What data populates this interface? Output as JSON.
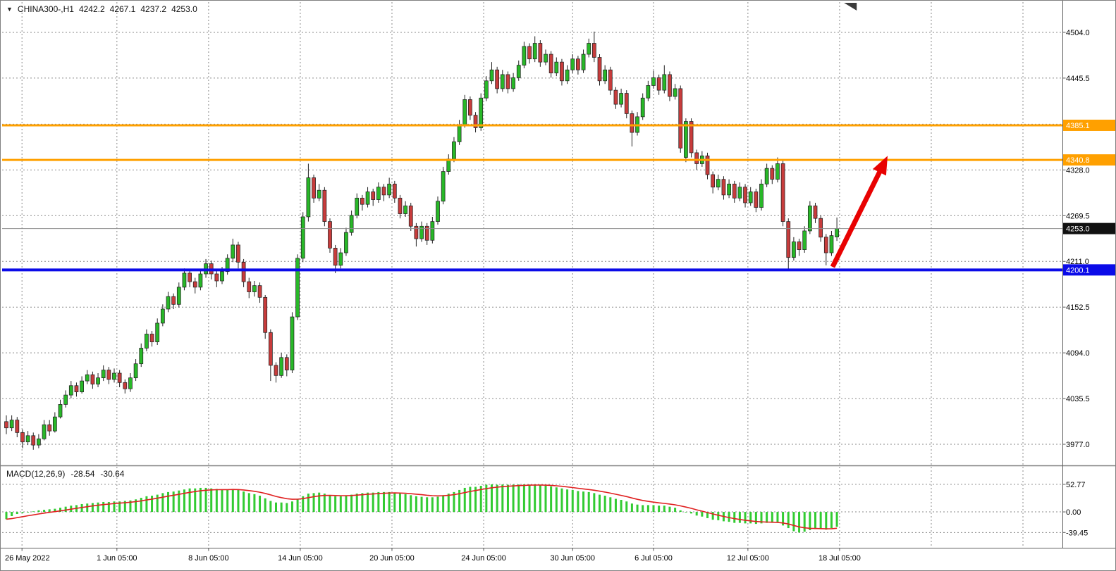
{
  "window": {
    "background": "#ffffff",
    "border_color": "#808080"
  },
  "header": {
    "collapse_icon": "▼",
    "symbol_timeframe": "CHINA300-,H1",
    "open": "4242.2",
    "high": "4267.1",
    "low": "4237.2",
    "close": "4253.0"
  },
  "macd_header": {
    "name": "MACD(12,26,9)",
    "macd_value": "-28.54",
    "signal_value": "-30.64"
  },
  "icons": {
    "shift_marker": "chart-shift-marker"
  },
  "chart_data": [
    {
      "type": "candlestick",
      "title": "CHINA300-,H1",
      "x_axis": {
        "labels": [
          "26 May 2022",
          "1 Jun 05:00",
          "8 Jun 05:00",
          "14 Jun 05:00",
          "20 Jun 05:00",
          "24 Jun 05:00",
          "30 Jun 05:00",
          "6 Jul 05:00",
          "12 Jul 05:00",
          "18 Jul 05:00"
        ],
        "gridline_candle_indices": [
          2.9,
          20.5,
          37.5,
          54.5,
          71.5,
          88.5,
          105,
          120,
          137.5,
          154.5
        ],
        "extra_gridline_indices": [
          171.5,
          188.5
        ]
      },
      "y_axis": {
        "range": [
          3951.8,
          4537.3
        ],
        "ticks": [
          {
            "price": 4504.0,
            "label": "4504.0"
          },
          {
            "price": 4445.5,
            "label": "4445.5"
          },
          {
            "price": 4328.0,
            "label": "4328.0"
          },
          {
            "price": 4269.5,
            "label": "4269.5"
          },
          {
            "price": 4211.0,
            "label": "4211.0"
          },
          {
            "price": 4152.5,
            "label": "4152.5"
          },
          {
            "price": 4094.0,
            "label": "4094.0"
          },
          {
            "price": 4035.5,
            "label": "4035.5"
          },
          {
            "price": 3977.0,
            "label": "3977.0"
          }
        ],
        "grid_only": [
          4386.5
        ]
      },
      "colors": {
        "up": "#28B828",
        "down": "#C83C3C",
        "outline": "#222222",
        "grid": "#8a8a8a"
      },
      "candles": [
        [
          4006,
          4014,
          3990,
          3998
        ],
        [
          3998,
          4014,
          3994,
          4008
        ],
        [
          4008,
          4012,
          3986,
          3992
        ],
        [
          3992,
          3996,
          3972,
          3980
        ],
        [
          3980,
          3994,
          3976,
          3988
        ],
        [
          3988,
          3992,
          3970,
          3976
        ],
        [
          3976,
          3990,
          3972,
          3984
        ],
        [
          3984,
          4008,
          3982,
          4002
        ],
        [
          4002,
          4008,
          3988,
          3994
        ],
        [
          3994,
          4018,
          3992,
          4012
        ],
        [
          4012,
          4034,
          4010,
          4028
        ],
        [
          4028,
          4046,
          4024,
          4040
        ],
        [
          4040,
          4058,
          4036,
          4052
        ],
        [
          4052,
          4056,
          4038,
          4044
        ],
        [
          4044,
          4064,
          4042,
          4058
        ],
        [
          4058,
          4072,
          4054,
          4066
        ],
        [
          4066,
          4070,
          4048,
          4054
        ],
        [
          4054,
          4068,
          4050,
          4062
        ],
        [
          4062,
          4078,
          4058,
          4072
        ],
        [
          4072,
          4076,
          4054,
          4060
        ],
        [
          4060,
          4074,
          4056,
          4068
        ],
        [
          4068,
          4072,
          4050,
          4056
        ],
        [
          4056,
          4060,
          4042,
          4048
        ],
        [
          4048,
          4068,
          4044,
          4062
        ],
        [
          4062,
          4086,
          4058,
          4080
        ],
        [
          4080,
          4106,
          4076,
          4100
        ],
        [
          4100,
          4124,
          4096,
          4118
        ],
        [
          4118,
          4122,
          4102,
          4108
        ],
        [
          4108,
          4138,
          4104,
          4132
        ],
        [
          4132,
          4156,
          4128,
          4150
        ],
        [
          4150,
          4172,
          4146,
          4166
        ],
        [
          4166,
          4170,
          4150,
          4156
        ],
        [
          4156,
          4184,
          4152,
          4178
        ],
        [
          4178,
          4202,
          4174,
          4196
        ],
        [
          4196,
          4200,
          4178,
          4185
        ],
        [
          4185,
          4190,
          4170,
          4178
        ],
        [
          4178,
          4200,
          4174,
          4195
        ],
        [
          4195,
          4214,
          4190,
          4208
        ],
        [
          4208,
          4212,
          4188,
          4195
        ],
        [
          4195,
          4200,
          4178,
          4186
        ],
        [
          4186,
          4204,
          4182,
          4198
        ],
        [
          4198,
          4220,
          4194,
          4215
        ],
        [
          4215,
          4240,
          4210,
          4232
        ],
        [
          4232,
          4236,
          4202,
          4210
        ],
        [
          4210,
          4214,
          4178,
          4185
        ],
        [
          4185,
          4190,
          4164,
          4172
        ],
        [
          4172,
          4186,
          4166,
          4180
        ],
        [
          4180,
          4184,
          4158,
          4165
        ],
        [
          4165,
          4168,
          4112,
          4120
        ],
        [
          4120,
          4124,
          4058,
          4078
        ],
        [
          4078,
          4082,
          4056,
          4065
        ],
        [
          4065,
          4094,
          4062,
          4088
        ],
        [
          4088,
          4092,
          4064,
          4072
        ],
        [
          4072,
          4146,
          4068,
          4140
        ],
        [
          4140,
          4220,
          4136,
          4215
        ],
        [
          4215,
          4274,
          4210,
          4268
        ],
        [
          4268,
          4336,
          4262,
          4318
        ],
        [
          4318,
          4322,
          4286,
          4292
        ],
        [
          4292,
          4310,
          4288,
          4302
        ],
        [
          4302,
          4306,
          4256,
          4262
        ],
        [
          4262,
          4266,
          4222,
          4228
        ],
        [
          4228,
          4232,
          4196,
          4206
        ],
        [
          4206,
          4228,
          4202,
          4222
        ],
        [
          4222,
          4254,
          4218,
          4248
        ],
        [
          4248,
          4276,
          4244,
          4270
        ],
        [
          4270,
          4298,
          4266,
          4292
        ],
        [
          4292,
          4296,
          4276,
          4284
        ],
        [
          4284,
          4306,
          4280,
          4300
        ],
        [
          4300,
          4304,
          4282,
          4290
        ],
        [
          4290,
          4312,
          4286,
          4306
        ],
        [
          4306,
          4310,
          4288,
          4296
        ],
        [
          4296,
          4318,
          4292,
          4310
        ],
        [
          4310,
          4314,
          4286,
          4292
        ],
        [
          4292,
          4296,
          4266,
          4272
        ],
        [
          4272,
          4288,
          4268,
          4282
        ],
        [
          4282,
          4286,
          4250,
          4256
        ],
        [
          4256,
          4260,
          4230,
          4240
        ],
        [
          4240,
          4262,
          4236,
          4256
        ],
        [
          4256,
          4260,
          4232,
          4238
        ],
        [
          4238,
          4268,
          4234,
          4262
        ],
        [
          4262,
          4294,
          4258,
          4288
        ],
        [
          4288,
          4332,
          4284,
          4326
        ],
        [
          4326,
          4348,
          4322,
          4342
        ],
        [
          4342,
          4370,
          4338,
          4364
        ],
        [
          4364,
          4392,
          4360,
          4386
        ],
        [
          4386,
          4424,
          4382,
          4418
        ],
        [
          4418,
          4422,
          4392,
          4398
        ],
        [
          4398,
          4402,
          4376,
          4382
        ],
        [
          4382,
          4426,
          4378,
          4420
        ],
        [
          4420,
          4448,
          4416,
          4442
        ],
        [
          4442,
          4466,
          4438,
          4456
        ],
        [
          4456,
          4460,
          4426,
          4432
        ],
        [
          4432,
          4456,
          4428,
          4450
        ],
        [
          4450,
          4454,
          4426,
          4432
        ],
        [
          4432,
          4452,
          4428,
          4446
        ],
        [
          4446,
          4468,
          4442,
          4462
        ],
        [
          4462,
          4492,
          4458,
          4486
        ],
        [
          4486,
          4490,
          4464,
          4470
        ],
        [
          4470,
          4499,
          4466,
          4490
        ],
        [
          4490,
          4494,
          4460,
          4466
        ],
        [
          4466,
          4482,
          4462,
          4476
        ],
        [
          4476,
          4480,
          4446,
          4452
        ],
        [
          4452,
          4472,
          4448,
          4466
        ],
        [
          4466,
          4470,
          4436,
          4442
        ],
        [
          4442,
          4462,
          4438,
          4456
        ],
        [
          4456,
          4476,
          4452,
          4470
        ],
        [
          4470,
          4474,
          4450,
          4456
        ],
        [
          4456,
          4482,
          4452,
          4476
        ],
        [
          4476,
          4496,
          4472,
          4490
        ],
        [
          4490,
          4505,
          4466,
          4472
        ],
        [
          4472,
          4476,
          4436,
          4442
        ],
        [
          4442,
          4462,
          4438,
          4456
        ],
        [
          4456,
          4460,
          4424,
          4430
        ],
        [
          4430,
          4434,
          4406,
          4412
        ],
        [
          4412,
          4432,
          4408,
          4426
        ],
        [
          4426,
          4430,
          4394,
          4400
        ],
        [
          4400,
          4404,
          4358,
          4376
        ],
        [
          4376,
          4402,
          4372,
          4396
        ],
        [
          4396,
          4426,
          4392,
          4420
        ],
        [
          4420,
          4442,
          4416,
          4436
        ],
        [
          4436,
          4455,
          4432,
          4446
        ],
        [
          4446,
          4450,
          4424,
          4430
        ],
        [
          4430,
          4462,
          4426,
          4450
        ],
        [
          4450,
          4454,
          4416,
          4422
        ],
        [
          4422,
          4438,
          4418,
          4432
        ],
        [
          4432,
          4436,
          4350,
          4356
        ],
        [
          4344,
          4394,
          4338,
          4390
        ],
        [
          4390,
          4394,
          4344,
          4350
        ],
        [
          4350,
          4354,
          4328,
          4336
        ],
        [
          4336,
          4352,
          4332,
          4346
        ],
        [
          4346,
          4350,
          4316,
          4322
        ],
        [
          4322,
          4326,
          4298,
          4306
        ],
        [
          4306,
          4322,
          4302,
          4316
        ],
        [
          4316,
          4320,
          4290,
          4296
        ],
        [
          4296,
          4316,
          4292,
          4310
        ],
        [
          4310,
          4314,
          4286,
          4292
        ],
        [
          4292,
          4312,
          4288,
          4306
        ],
        [
          4306,
          4310,
          4280,
          4286
        ],
        [
          4286,
          4306,
          4282,
          4300
        ],
        [
          4300,
          4304,
          4274,
          4280
        ],
        [
          4280,
          4316,
          4276,
          4310
        ],
        [
          4310,
          4336,
          4306,
          4330
        ],
        [
          4330,
          4334,
          4310,
          4316
        ],
        [
          4316,
          4344,
          4312,
          4336
        ],
        [
          4336,
          4340,
          4256,
          4262
        ],
        [
          4262,
          4266,
          4200,
          4216
        ],
        [
          4216,
          4242,
          4212,
          4236
        ],
        [
          4236,
          4240,
          4218,
          4226
        ],
        [
          4226,
          4256,
          4222,
          4250
        ],
        [
          4250,
          4288,
          4246,
          4282
        ],
        [
          4282,
          4286,
          4260,
          4266
        ],
        [
          4266,
          4270,
          4236,
          4242
        ],
        [
          4242,
          4246,
          4206,
          4222
        ],
        [
          4222,
          4250,
          4218,
          4244
        ],
        [
          4242.2,
          4267.1,
          4237.2,
          4253.0
        ]
      ],
      "overlays": {
        "hlines": [
          {
            "price": 4385.1,
            "label": "4385.1",
            "color": "#FFA000",
            "width": 3
          },
          {
            "price": 4340.8,
            "label": "4340.8",
            "color": "#FFA000",
            "width": 3
          },
          {
            "price": 4200.1,
            "label": "4200.1",
            "color": "#0B0BE8",
            "width": 4
          }
        ],
        "price_line": {
          "price": 4253.0,
          "label": "4253.0",
          "line_color": "#8c8c8c",
          "label_bg": "#111111"
        },
        "arrow": {
          "from": {
            "candle_index": 153.2,
            "price": 4204
          },
          "to": {
            "candle_index": 163.4,
            "price": 4346
          },
          "color": "#E80202",
          "width": 7
        }
      }
    },
    {
      "type": "bar",
      "name": "MACD(12,26,9)",
      "last_value": -28.54,
      "bar_color": "#32CB32",
      "signal": {
        "type": "ema",
        "period": 9,
        "color": "#E02020",
        "last_value": -30.64
      },
      "y_axis": {
        "range": [
          -66,
          81
        ],
        "ticks": [
          {
            "value": 52.77,
            "label": "52.77"
          },
          {
            "value": 0,
            "label": "0.00"
          },
          {
            "value": -39.45,
            "label": "-39.45"
          }
        ]
      },
      "values": [
        -14,
        -8,
        -4,
        -2,
        0,
        1,
        3,
        4,
        5,
        6,
        8,
        10,
        12,
        13,
        15,
        16,
        17,
        18,
        19,
        19,
        20,
        20,
        21,
        22,
        24,
        27,
        30,
        31,
        33,
        36,
        38,
        39,
        41,
        43,
        45,
        45,
        46,
        46,
        45,
        44,
        43,
        43,
        44,
        42,
        39,
        36,
        34,
        31,
        26,
        21,
        18,
        18,
        17,
        20,
        25,
        30,
        35,
        36,
        37,
        35,
        32,
        30,
        30,
        31,
        33,
        35,
        36,
        37,
        37,
        38,
        38,
        38,
        37,
        35,
        34,
        32,
        30,
        29,
        28,
        28,
        29,
        32,
        35,
        38,
        42,
        46,
        48,
        48,
        50,
        52,
        52.77,
        52,
        52.5,
        52,
        52.3,
        52.5,
        52.77,
        52.4,
        52.6,
        51.5,
        50.5,
        49,
        47,
        45,
        43,
        42,
        40,
        39,
        38,
        36,
        33,
        31,
        28,
        25,
        23,
        20,
        16,
        14,
        13,
        13,
        13,
        12,
        12,
        10,
        8,
        3,
        0,
        -3,
        -7,
        -9,
        -12,
        -15,
        -16,
        -18,
        -19,
        -21,
        -21,
        -22,
        -22,
        -23,
        -22,
        -21,
        -21,
        -21,
        -26,
        -31,
        -37,
        -39.45,
        -38,
        -35,
        -33,
        -33,
        -34,
        -31,
        -28.54
      ]
    }
  ]
}
